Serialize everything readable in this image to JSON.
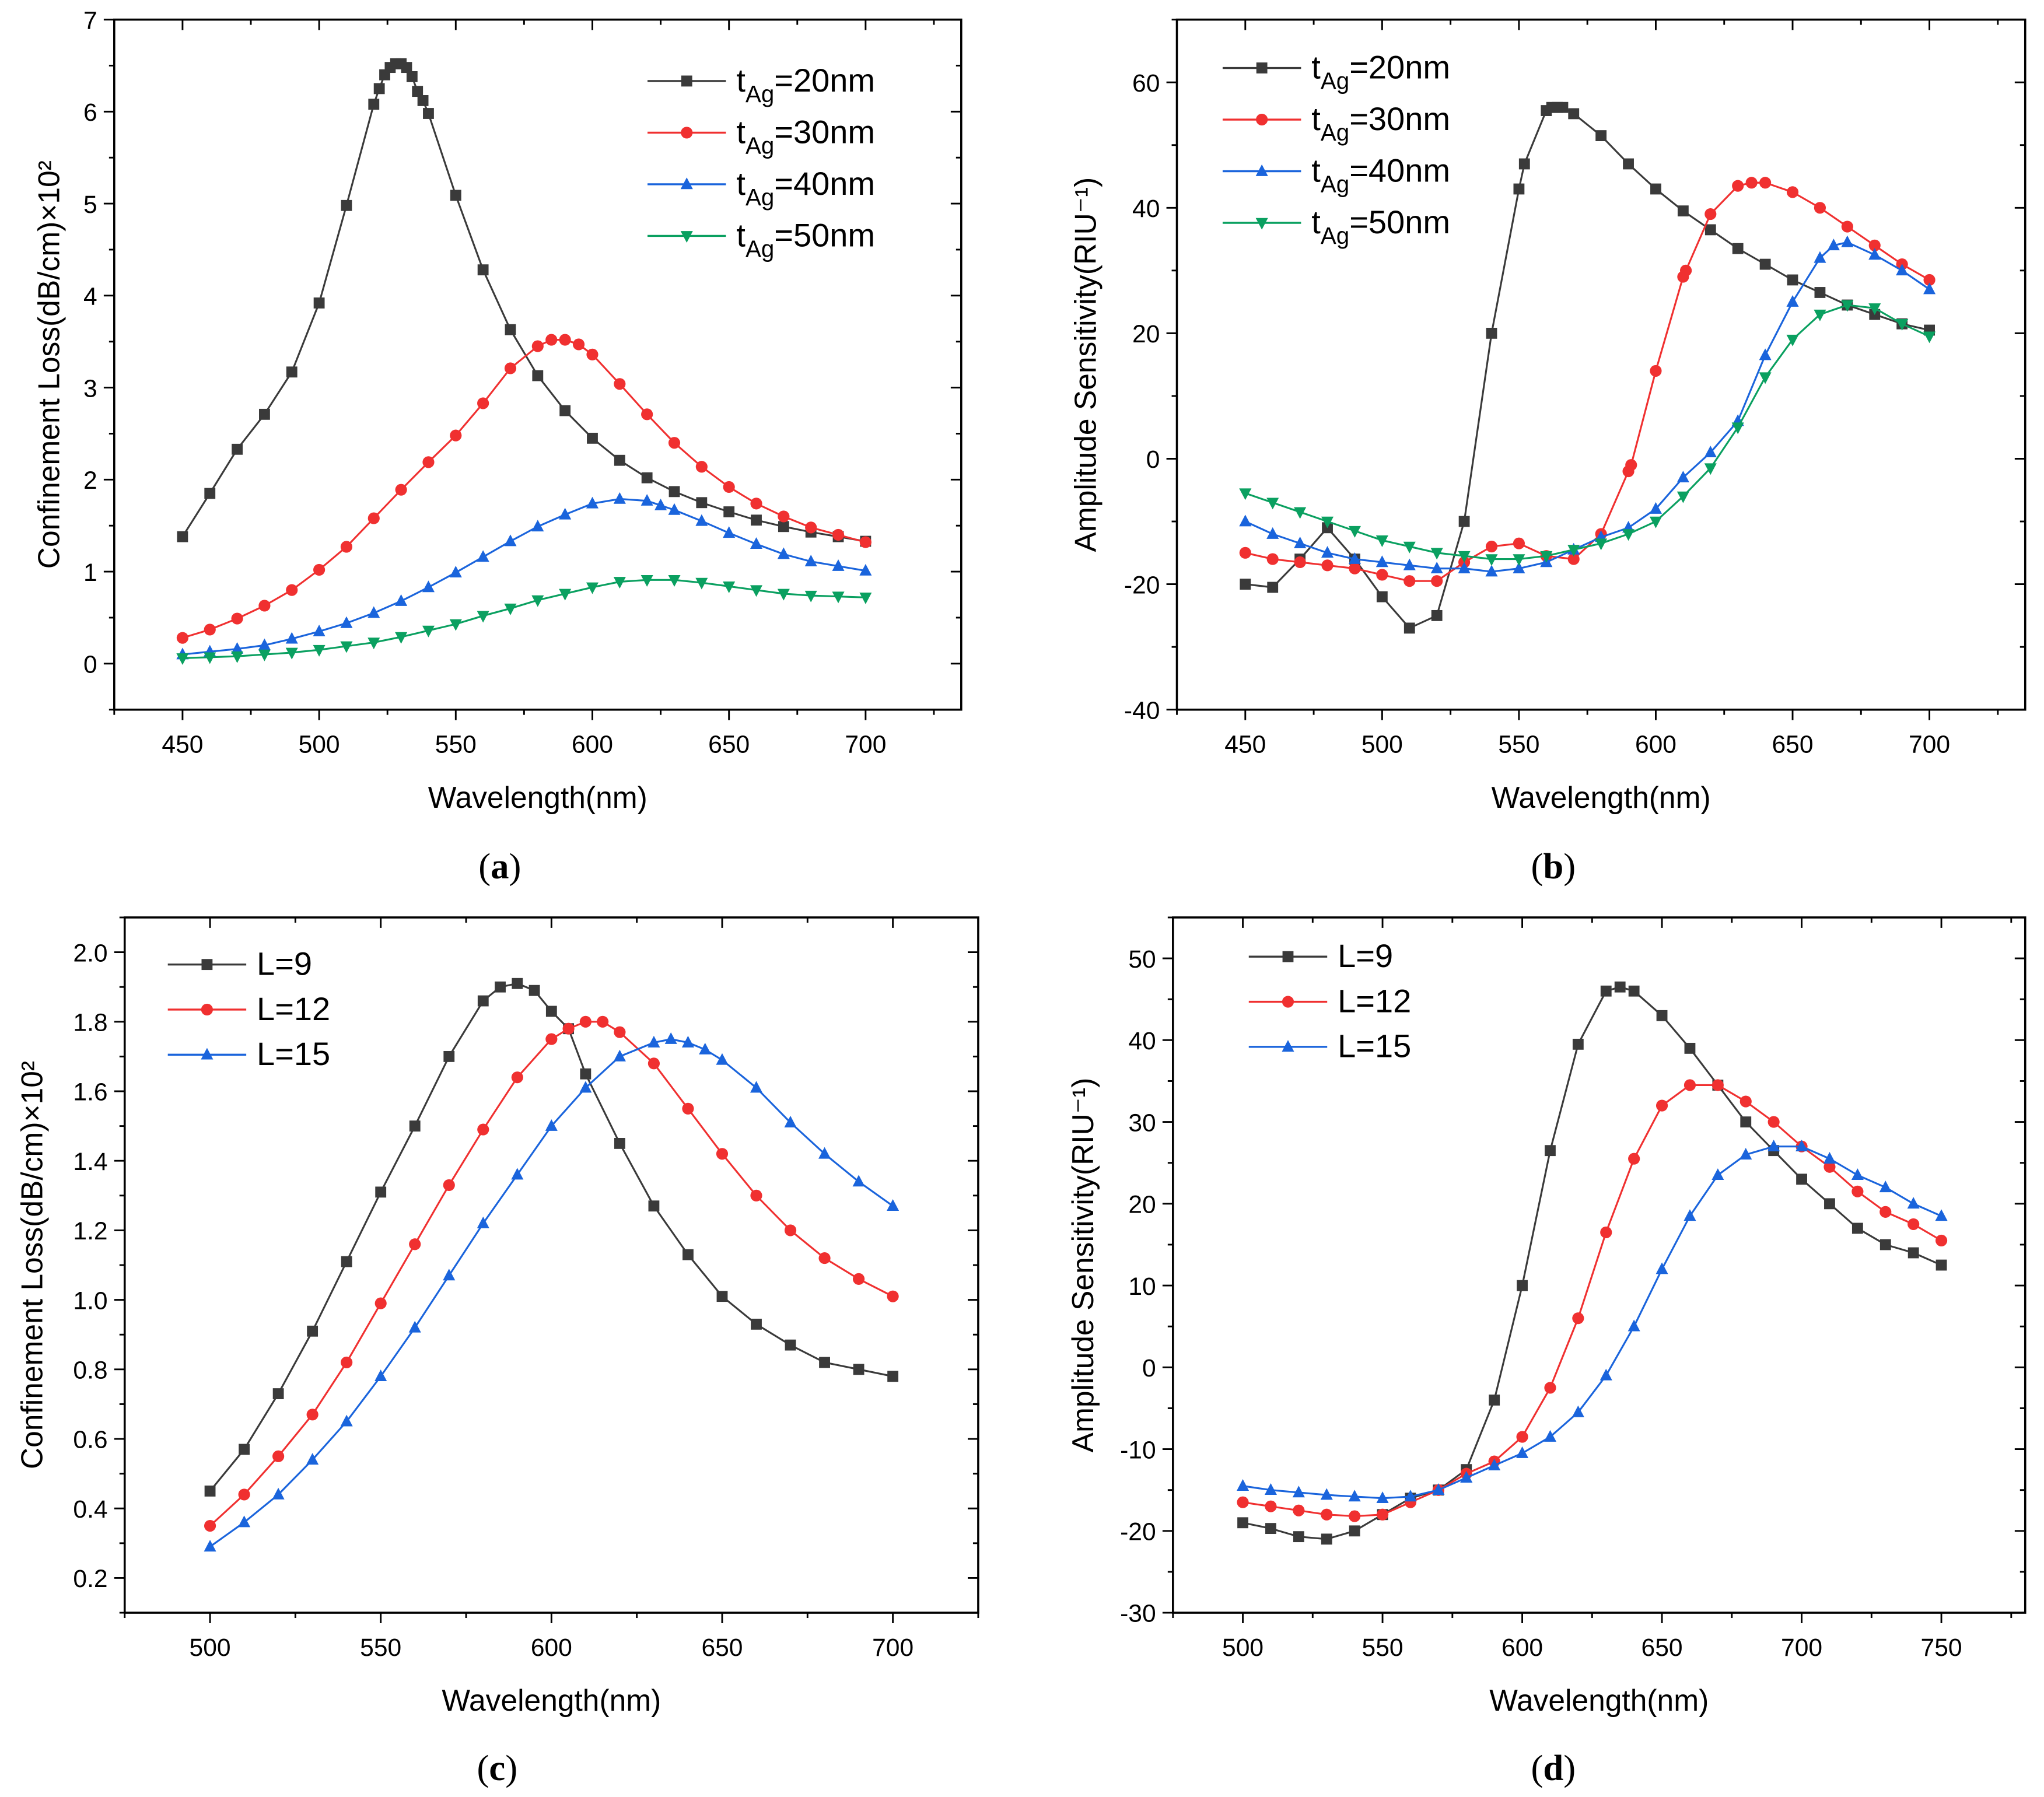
{
  "chart_data": [
    {
      "panel": "a",
      "caption_letter": "a",
      "type": "line",
      "xlabel": "Wavelength(nm)",
      "ylabel": "Confinement Loss(dB/cm)×10²",
      "xlim": [
        425,
        735
      ],
      "ylim": [
        -0.5,
        7
      ],
      "xticks": [
        450,
        500,
        550,
        600,
        650,
        700
      ],
      "yticks": [
        0,
        1,
        2,
        3,
        4,
        5,
        6,
        7
      ],
      "legend": "top-right",
      "series": [
        {
          "name": "tAg=20nm",
          "base": "t",
          "sub": "Ag",
          "rest": "=20nm",
          "color": "#3a3a3a",
          "marker": "square",
          "x": [
            450,
            460,
            470,
            480,
            490,
            500,
            510,
            520,
            522,
            524,
            526,
            528,
            530,
            532,
            534,
            536,
            538,
            540,
            550,
            560,
            570,
            580,
            590,
            600,
            610,
            620,
            630,
            640,
            650,
            660,
            670,
            680,
            690,
            700
          ],
          "y": [
            1.38,
            1.85,
            2.33,
            2.71,
            3.17,
            3.92,
            4.98,
            6.08,
            6.25,
            6.4,
            6.48,
            6.52,
            6.52,
            6.48,
            6.38,
            6.22,
            6.12,
            5.98,
            5.09,
            4.28,
            3.63,
            3.13,
            2.75,
            2.45,
            2.21,
            2.02,
            1.87,
            1.75,
            1.65,
            1.56,
            1.49,
            1.43,
            1.38,
            1.33
          ]
        },
        {
          "name": "tAg=30nm",
          "base": "t",
          "sub": "Ag",
          "rest": "=30nm",
          "color": "#f03030",
          "marker": "circle",
          "x": [
            450,
            460,
            470,
            480,
            490,
            500,
            510,
            520,
            530,
            540,
            550,
            560,
            570,
            580,
            585,
            590,
            595,
            600,
            610,
            620,
            630,
            640,
            650,
            660,
            670,
            680,
            690,
            700
          ],
          "y": [
            0.28,
            0.37,
            0.49,
            0.63,
            0.8,
            1.02,
            1.27,
            1.58,
            1.89,
            2.19,
            2.48,
            2.83,
            3.21,
            3.45,
            3.52,
            3.52,
            3.47,
            3.36,
            3.04,
            2.71,
            2.4,
            2.14,
            1.92,
            1.74,
            1.6,
            1.48,
            1.4,
            1.32
          ]
        },
        {
          "name": "tAg=40nm",
          "base": "t",
          "sub": "Ag",
          "rest": "=40nm",
          "color": "#1a64dc",
          "marker": "triangle-up",
          "x": [
            450,
            460,
            470,
            480,
            490,
            500,
            510,
            520,
            530,
            540,
            550,
            560,
            570,
            580,
            590,
            600,
            610,
            620,
            625,
            630,
            640,
            650,
            660,
            670,
            680,
            690,
            700
          ],
          "y": [
            0.1,
            0.13,
            0.16,
            0.2,
            0.27,
            0.35,
            0.44,
            0.55,
            0.68,
            0.83,
            0.99,
            1.16,
            1.33,
            1.49,
            1.62,
            1.74,
            1.79,
            1.77,
            1.72,
            1.67,
            1.55,
            1.42,
            1.3,
            1.19,
            1.11,
            1.06,
            1.01
          ]
        },
        {
          "name": "tAg=50nm",
          "base": "t",
          "sub": "Ag",
          "rest": "=50nm",
          "color": "#0aa060",
          "marker": "triangle-down",
          "x": [
            450,
            460,
            470,
            480,
            490,
            500,
            510,
            520,
            530,
            540,
            550,
            560,
            570,
            580,
            590,
            600,
            610,
            620,
            630,
            640,
            650,
            660,
            670,
            680,
            690,
            700
          ],
          "y": [
            0.06,
            0.07,
            0.08,
            0.1,
            0.12,
            0.15,
            0.19,
            0.23,
            0.29,
            0.36,
            0.43,
            0.52,
            0.6,
            0.69,
            0.76,
            0.83,
            0.89,
            0.91,
            0.91,
            0.88,
            0.84,
            0.8,
            0.76,
            0.74,
            0.73,
            0.72
          ]
        }
      ]
    },
    {
      "panel": "b",
      "caption_letter": "b",
      "type": "line",
      "xlabel": "Wavelength(nm)",
      "ylabel": "Amplitude Sensitivity(RIU⁻¹)",
      "xlim": [
        425,
        735
      ],
      "ylim": [
        -40,
        70
      ],
      "xticks": [
        450,
        500,
        550,
        600,
        650,
        700
      ],
      "yticks": [
        -40,
        -20,
        0,
        20,
        40,
        60
      ],
      "legend": "top-left",
      "series": [
        {
          "name": "tAg=20nm",
          "base": "t",
          "sub": "Ag",
          "rest": "=20nm",
          "color": "#3a3a3a",
          "marker": "square",
          "x": [
            450,
            460,
            470,
            480,
            490,
            500,
            510,
            520,
            530,
            540,
            550,
            552,
            560,
            562,
            564,
            566,
            570,
            580,
            590,
            600,
            610,
            620,
            630,
            640,
            650,
            660,
            670,
            680,
            690,
            700
          ],
          "y": [
            -20,
            -20.5,
            -16,
            -11,
            -16,
            -22,
            -27,
            -25,
            -10,
            20,
            43,
            47,
            55.5,
            56,
            56,
            56,
            55,
            51.5,
            47,
            43,
            39.5,
            36.5,
            33.5,
            31,
            28.5,
            26.5,
            24.5,
            23,
            21.5,
            20.5
          ]
        },
        {
          "name": "tAg=30nm",
          "base": "t",
          "sub": "Ag",
          "rest": "=30nm",
          "color": "#f03030",
          "marker": "circle",
          "x": [
            450,
            460,
            470,
            480,
            490,
            500,
            510,
            520,
            530,
            540,
            550,
            560,
            570,
            580,
            590,
            591,
            600,
            610,
            611,
            620,
            630,
            635,
            640,
            650,
            660,
            670,
            680,
            690,
            700
          ],
          "y": [
            -15,
            -16,
            -16.5,
            -17,
            -17.5,
            -18.5,
            -19.5,
            -19.5,
            -16.5,
            -14,
            -13.5,
            -15.5,
            -16,
            -12,
            -2,
            -1,
            14,
            29,
            30,
            39,
            43.5,
            44,
            44,
            42.5,
            40,
            37,
            34,
            31,
            28.5
          ]
        },
        {
          "name": "tAg=40nm",
          "base": "t",
          "sub": "Ag",
          "rest": "=40nm",
          "color": "#1a64dc",
          "marker": "triangle-up",
          "x": [
            450,
            460,
            470,
            480,
            490,
            500,
            510,
            520,
            530,
            540,
            550,
            560,
            570,
            580,
            590,
            600,
            610,
            620,
            630,
            640,
            650,
            660,
            665,
            670,
            680,
            690,
            700
          ],
          "y": [
            -10,
            -12,
            -13.5,
            -15,
            -16,
            -16.5,
            -17,
            -17.5,
            -17.5,
            -18,
            -17.5,
            -16.5,
            -14.5,
            -12.5,
            -11,
            -8,
            -3,
            1,
            6,
            16.5,
            25,
            32,
            34,
            34.5,
            32.5,
            30,
            27
          ]
        },
        {
          "name": "tAg=50nm",
          "base": "t",
          "sub": "Ag",
          "rest": "=50nm",
          "color": "#0aa060",
          "marker": "triangle-down",
          "x": [
            450,
            460,
            470,
            480,
            490,
            500,
            510,
            520,
            530,
            540,
            550,
            560,
            570,
            580,
            590,
            600,
            610,
            620,
            630,
            640,
            650,
            660,
            670,
            680,
            690,
            700
          ],
          "y": [
            -5.5,
            -7,
            -8.5,
            -10,
            -11.5,
            -13,
            -14,
            -15,
            -15.5,
            -16,
            -16,
            -15.5,
            -14.5,
            -13.5,
            -12,
            -10,
            -6,
            -1.5,
            5,
            13,
            19,
            23,
            24.5,
            24,
            21.5,
            19.5
          ]
        }
      ]
    },
    {
      "panel": "c",
      "caption_letter": "c",
      "type": "line",
      "xlabel": "Wavelength(nm)",
      "ylabel": "Confinement Loss(dB/cm)×10²",
      "xlim": [
        475,
        725
      ],
      "ylim": [
        0.1,
        2.1
      ],
      "xticks": [
        500,
        550,
        600,
        650,
        700
      ],
      "yticks": [
        0.2,
        0.4,
        0.6,
        0.8,
        1.0,
        1.2,
        1.4,
        1.6,
        1.8,
        2.0
      ],
      "legend": "top-left",
      "series": [
        {
          "name": "L=9",
          "base": "L=9",
          "color": "#3a3a3a",
          "marker": "square",
          "x": [
            500,
            510,
            520,
            530,
            540,
            550,
            560,
            570,
            580,
            585,
            590,
            595,
            600,
            605,
            610,
            620,
            630,
            640,
            650,
            660,
            670,
            680,
            690,
            700
          ],
          "y": [
            0.45,
            0.57,
            0.73,
            0.91,
            1.11,
            1.31,
            1.5,
            1.7,
            1.86,
            1.9,
            1.91,
            1.89,
            1.83,
            1.78,
            1.65,
            1.45,
            1.27,
            1.13,
            1.01,
            0.93,
            0.87,
            0.82,
            0.8,
            0.78
          ]
        },
        {
          "name": "L=12",
          "base": "L=12",
          "color": "#f03030",
          "marker": "circle",
          "x": [
            500,
            510,
            520,
            530,
            540,
            550,
            560,
            570,
            580,
            590,
            600,
            605,
            610,
            615,
            620,
            630,
            640,
            650,
            660,
            670,
            680,
            690,
            700
          ],
          "y": [
            0.35,
            0.44,
            0.55,
            0.67,
            0.82,
            0.99,
            1.16,
            1.33,
            1.49,
            1.64,
            1.75,
            1.78,
            1.8,
            1.8,
            1.77,
            1.68,
            1.55,
            1.42,
            1.3,
            1.2,
            1.12,
            1.06,
            1.01
          ]
        },
        {
          "name": "L=15",
          "base": "L=15",
          "color": "#1a64dc",
          "marker": "triangle-up",
          "x": [
            500,
            510,
            520,
            530,
            540,
            550,
            560,
            570,
            580,
            590,
            600,
            610,
            620,
            630,
            635,
            640,
            645,
            650,
            660,
            670,
            680,
            690,
            700
          ],
          "y": [
            0.29,
            0.36,
            0.44,
            0.54,
            0.65,
            0.78,
            0.92,
            1.07,
            1.22,
            1.36,
            1.5,
            1.61,
            1.7,
            1.74,
            1.75,
            1.74,
            1.72,
            1.69,
            1.61,
            1.51,
            1.42,
            1.34,
            1.27
          ]
        }
      ]
    },
    {
      "panel": "d",
      "caption_letter": "d",
      "type": "line",
      "xlabel": "Wavelength(nm)",
      "ylabel": "Amplitude Sensitivity(RIU⁻¹)",
      "xlim": [
        475,
        780
      ],
      "ylim": [
        -30,
        55
      ],
      "xticks": [
        500,
        550,
        600,
        650,
        700,
        750
      ],
      "yticks": [
        -30,
        -20,
        -10,
        0,
        10,
        20,
        30,
        40,
        50
      ],
      "legend": "top-left",
      "series": [
        {
          "name": "L=9",
          "base": "L=9",
          "color": "#3a3a3a",
          "marker": "square",
          "x": [
            500,
            510,
            520,
            530,
            540,
            550,
            560,
            570,
            580,
            590,
            600,
            610,
            620,
            630,
            635,
            640,
            650,
            660,
            670,
            680,
            690,
            700,
            710,
            720,
            730,
            740,
            750
          ],
          "y": [
            -19,
            -19.7,
            -20.7,
            -21,
            -20,
            -18,
            -16,
            -15,
            -12.5,
            -4,
            10,
            26.5,
            39.5,
            46,
            46.5,
            46,
            43,
            39,
            34.5,
            30,
            26.5,
            23,
            20,
            17,
            15,
            14,
            12.5
          ]
        },
        {
          "name": "L=12",
          "base": "L=12",
          "color": "#f03030",
          "marker": "circle",
          "x": [
            500,
            510,
            520,
            530,
            540,
            550,
            560,
            570,
            580,
            590,
            600,
            610,
            620,
            630,
            640,
            650,
            660,
            670,
            680,
            690,
            700,
            710,
            720,
            730,
            740,
            750
          ],
          "y": [
            -16.5,
            -17,
            -17.5,
            -18,
            -18.2,
            -18,
            -16.5,
            -15,
            -13,
            -11.5,
            -8.5,
            -2.5,
            6,
            16.5,
            25.5,
            32,
            34.5,
            34.5,
            32.5,
            30,
            27,
            24.5,
            21.5,
            19,
            17.5,
            15.5
          ]
        },
        {
          "name": "L=15",
          "base": "L=15",
          "color": "#1a64dc",
          "marker": "triangle-up",
          "x": [
            500,
            510,
            520,
            530,
            540,
            550,
            560,
            570,
            580,
            590,
            600,
            610,
            620,
            630,
            640,
            650,
            660,
            670,
            680,
            690,
            700,
            710,
            720,
            730,
            740,
            750
          ],
          "y": [
            -14.5,
            -15,
            -15.3,
            -15.6,
            -15.8,
            -16,
            -15.8,
            -15,
            -13.5,
            -12,
            -10.5,
            -8.5,
            -5.5,
            -1,
            5,
            12,
            18.5,
            23.5,
            26,
            27,
            27,
            25.5,
            23.5,
            22,
            20,
            18.5
          ]
        }
      ]
    }
  ]
}
